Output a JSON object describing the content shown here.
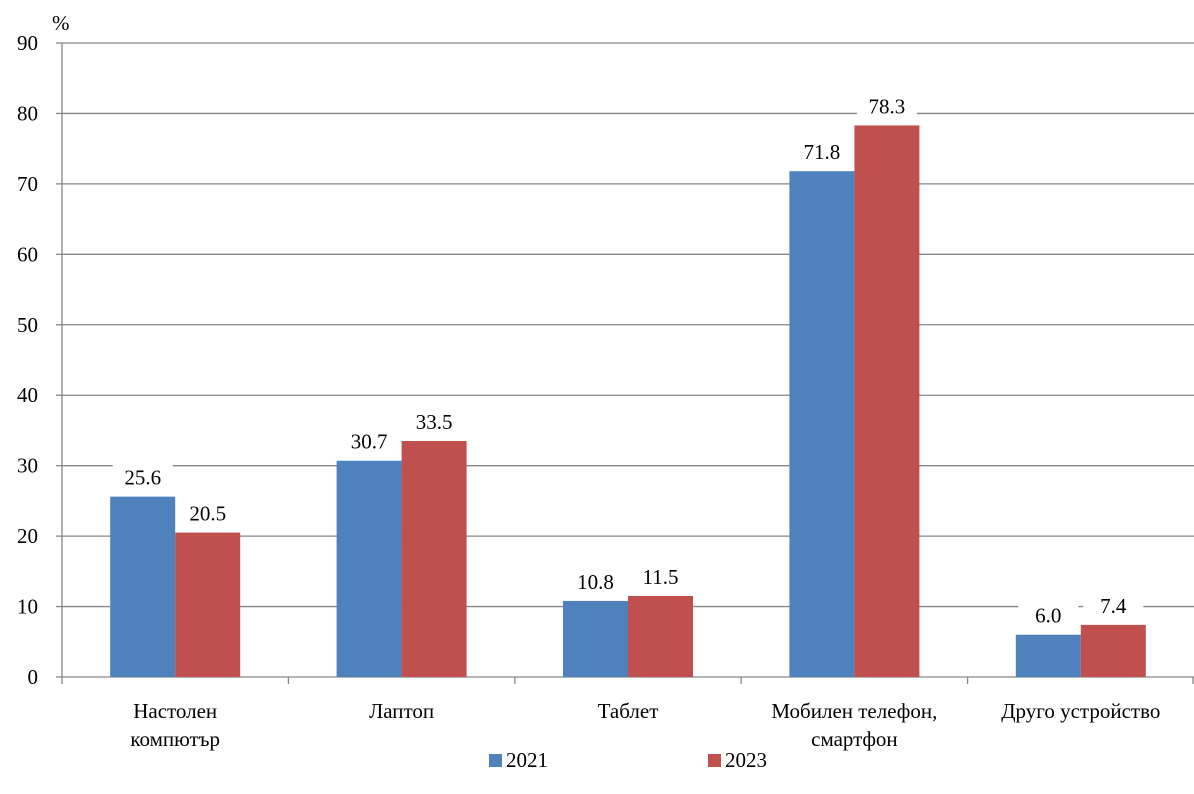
{
  "chart_data": {
    "type": "bar",
    "unit_label": "%",
    "categories": [
      [
        "Настолен",
        "компютър"
      ],
      [
        "Лаптоп"
      ],
      [
        "Таблет"
      ],
      [
        "Мобилен телефон,",
        "смартфон"
      ],
      [
        "Друго устройство"
      ]
    ],
    "series": [
      {
        "name": "2021",
        "color": "#4f81bd",
        "values": [
          25.6,
          30.7,
          10.8,
          71.8,
          6.0
        ],
        "labels": [
          "25.6",
          "30.7",
          "10.8",
          "71.8",
          "6.0"
        ]
      },
      {
        "name": "2023",
        "color": "#c0504d",
        "values": [
          20.5,
          33.5,
          11.5,
          78.3,
          7.4
        ],
        "labels": [
          "20.5",
          "33.5",
          "11.5",
          "78.3",
          "7.4"
        ]
      }
    ],
    "ylim": [
      0,
      90
    ],
    "yticks": [
      0,
      10,
      20,
      30,
      40,
      50,
      60,
      70,
      80,
      90
    ],
    "grid": true,
    "legend_position": "bottom"
  }
}
